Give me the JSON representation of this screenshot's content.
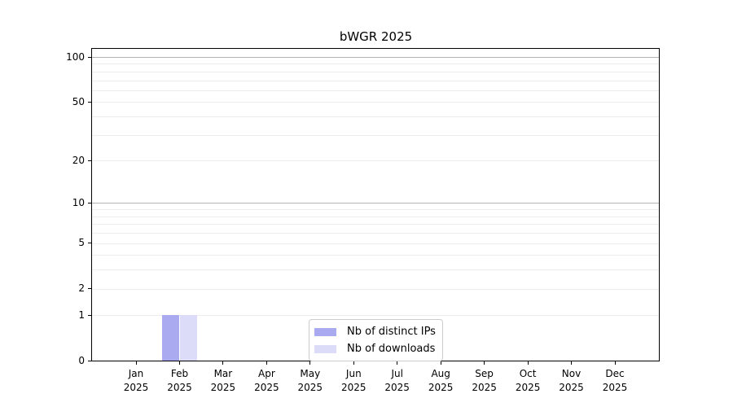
{
  "chart_data": {
    "type": "bar",
    "title": "bWGR 2025",
    "categories": [
      "Jan 2025",
      "Feb 2025",
      "Mar 2025",
      "Apr 2025",
      "May 2025",
      "Jun 2025",
      "Jul 2025",
      "Aug 2025",
      "Sep 2025",
      "Oct 2025",
      "Nov 2025",
      "Dec 2025"
    ],
    "x_tick_months": [
      "Jan",
      "Feb",
      "Mar",
      "Apr",
      "May",
      "Jun",
      "Jul",
      "Aug",
      "Sep",
      "Oct",
      "Nov",
      "Dec"
    ],
    "x_tick_year": "2025",
    "series": [
      {
        "name": "Nb of distinct IPs",
        "color": "#aaaaf0",
        "values": [
          0,
          1,
          0,
          0,
          0,
          0,
          0,
          0,
          0,
          0,
          0,
          0
        ]
      },
      {
        "name": "Nb of downloads",
        "color": "#dcdcf8",
        "values": [
          0,
          1,
          0,
          0,
          0,
          0,
          0,
          0,
          0,
          0,
          0,
          0
        ]
      }
    ],
    "xlabel": "",
    "ylabel": "",
    "y_scale": "log10(value+1)",
    "y_ticks": [
      0,
      1,
      2,
      5,
      10,
      20,
      50,
      100
    ],
    "ylim": [
      0,
      114
    ],
    "grid": true,
    "grid_minor_values": [
      1,
      2,
      3,
      4,
      5,
      6,
      7,
      8,
      9,
      20,
      30,
      40,
      50,
      60,
      70,
      80,
      90
    ],
    "grid_major_values": [
      10,
      100
    ],
    "legend_position": "lower center inside",
    "colors": {
      "bar_distinct_ips": "#aaaaf0",
      "bar_downloads": "#dcdcf8",
      "grid_minor": "#ededed",
      "grid_major": "#b3b3b3",
      "axis": "#000000",
      "legend_border": "#cccccc",
      "background": "#ffffff"
    }
  }
}
